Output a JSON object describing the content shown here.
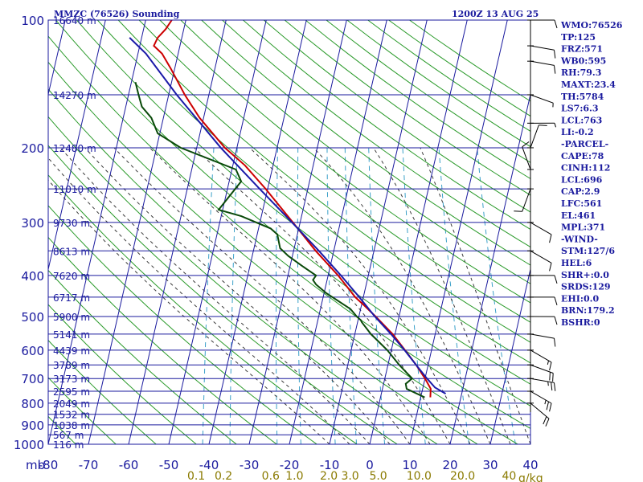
{
  "header": {
    "title": "MMZC (76526) Sounding",
    "datetime": "1200Z 13 AUG 25"
  },
  "colors": {
    "frame": "#1a1a9e",
    "isotherm": "#1a1a9e",
    "dry_adiabat": "#2a9a2a",
    "moist_adiabat": "#3a3a3a",
    "mixing_ratio": "#3aa0c8",
    "temperature": "#cc0000",
    "dewpoint": "#0a4a0a",
    "parcel": "#1a1aa8",
    "mixing_ratio_label": "#8a7a00"
  },
  "pressure_axis": {
    "unit_label": "mb",
    "levels": [
      100,
      200,
      300,
      400,
      500,
      600,
      700,
      800,
      900,
      1000
    ]
  },
  "temperature_axis": {
    "ticks": [
      -80,
      -70,
      -60,
      -50,
      -40,
      -30,
      -20,
      -10,
      0,
      10,
      20,
      30,
      40
    ]
  },
  "mixing_ratio_labels": [
    {
      "value": 0.1,
      "text": "0.1"
    },
    {
      "value": 0.2,
      "text": "0.2"
    },
    {
      "value": 0.6,
      "text": "0.6"
    },
    {
      "value": 1.0,
      "text": "1.0"
    },
    {
      "value": 2.0,
      "text": "2.0"
    },
    {
      "value": 3.0,
      "text": "3.0"
    },
    {
      "value": 5.0,
      "text": "5.0"
    },
    {
      "value": 10.0,
      "text": "10.0"
    },
    {
      "value": 20.0,
      "text": "20.0"
    },
    {
      "value": 40.0,
      "text": "40"
    }
  ],
  "mixing_ratio_unit": "g/kg",
  "heights": [
    {
      "p": 100,
      "text": "16640 m"
    },
    {
      "p": 150,
      "text": "14270 m"
    },
    {
      "p": 200,
      "text": "12480 m"
    },
    {
      "p": 250,
      "text": "11010 m"
    },
    {
      "p": 300,
      "text": "9730 m"
    },
    {
      "p": 350,
      "text": "8613 m"
    },
    {
      "p": 400,
      "text": "7620 m"
    },
    {
      "p": 450,
      "text": "6717 m"
    },
    {
      "p": 500,
      "text": "5900 m"
    },
    {
      "p": 550,
      "text": "5141 m"
    },
    {
      "p": 600,
      "text": "4439 m"
    },
    {
      "p": 650,
      "text": "3789 m"
    },
    {
      "p": 700,
      "text": "3173 m"
    },
    {
      "p": 750,
      "text": "2595 m"
    },
    {
      "p": 800,
      "text": "2049 m"
    },
    {
      "p": 850,
      "text": "1532 m"
    },
    {
      "p": 900,
      "text": "1038 m"
    },
    {
      "p": 950,
      "text": "567 m"
    },
    {
      "p": 1000,
      "text": "116 m"
    }
  ],
  "indices": [
    "WMO:76526",
    "TP:125",
    "FRZ:571",
    "WB0:595",
    "RH:79.3",
    "MAXT:23.4",
    "TH:5784",
    "LS7:6.3",
    "LCL:763",
    "LI:-0.2",
    "-PARCEL-",
    "CAPE:78",
    "CINH:112",
    "LCL:696",
    "CAP:2.9",
    "LFC:561",
    "EL:461",
    "MPL:371",
    "-WIND-",
    "STM:127/6",
    "HEL:6",
    "SHR+:0.0",
    "SRDS:129",
    "EHI:0.0",
    "BRN:179.2",
    "BSHR:0"
  ],
  "chart_data": {
    "type": "line",
    "title": "MMZC (76526) Sounding",
    "subtitle": "1200Z 13 AUG 25",
    "xlabel": "",
    "ylabel": "mb",
    "x_units": "°C",
    "xlim": [
      -80,
      40
    ],
    "ylim": [
      1000,
      100
    ],
    "y_scale": "log",
    "skew": "skew-T",
    "grid": true,
    "series": [
      {
        "key": "temperature",
        "points": [
          [
            775,
            12.4
          ],
          [
            740,
            12.0
          ],
          [
            700,
            10.0
          ],
          [
            650,
            7.0
          ],
          [
            600,
            3.4
          ],
          [
            550,
            -0.6
          ],
          [
            500,
            -5.8
          ],
          [
            470,
            -9.4
          ],
          [
            450,
            -12.0
          ],
          [
            400,
            -17.5
          ],
          [
            350,
            -24.5
          ],
          [
            300,
            -31.8
          ],
          [
            250,
            -40.5
          ],
          [
            220,
            -47.0
          ],
          [
            200,
            -53.0
          ],
          [
            170,
            -61.0
          ],
          [
            150,
            -66.0
          ],
          [
            130,
            -71.0
          ],
          [
            120,
            -74.0
          ],
          [
            115,
            -76.5
          ],
          [
            110,
            -76.0
          ],
          [
            105,
            -74.5
          ],
          [
            100,
            -73.5
          ]
        ]
      },
      {
        "key": "dewpoint",
        "points": [
          [
            775,
            11.0
          ],
          [
            740,
            6.0
          ],
          [
            720,
            5.5
          ],
          [
            700,
            6.8
          ],
          [
            650,
            2.8
          ],
          [
            600,
            -1.0
          ],
          [
            550,
            -6.0
          ],
          [
            515,
            -9.0
          ],
          [
            510,
            -9.3
          ],
          [
            500,
            -10.5
          ],
          [
            480,
            -12.5
          ],
          [
            440,
            -19.5
          ],
          [
            420,
            -22.5
          ],
          [
            410,
            -23.5
          ],
          [
            400,
            -23.0
          ],
          [
            380,
            -27.0
          ],
          [
            360,
            -31.0
          ],
          [
            345,
            -33.5
          ],
          [
            320,
            -35.0
          ],
          [
            310,
            -37.0
          ],
          [
            290,
            -45.0
          ],
          [
            280,
            -51.0
          ],
          [
            240,
            -47.0
          ],
          [
            225,
            -49.0
          ],
          [
            200,
            -64.0
          ],
          [
            185,
            -70.5
          ],
          [
            170,
            -73.0
          ],
          [
            160,
            -76.0
          ],
          [
            150,
            -77.5
          ],
          [
            140,
            -79.0
          ]
        ]
      },
      {
        "key": "parcel",
        "points": [
          [
            760,
            16.0
          ],
          [
            735,
            13.0
          ],
          [
            700,
            10.5
          ],
          [
            650,
            7.0
          ],
          [
            600,
            3.3
          ],
          [
            550,
            -1.0
          ],
          [
            500,
            -6.0
          ],
          [
            450,
            -11.0
          ],
          [
            400,
            -16.8
          ],
          [
            350,
            -23.7
          ],
          [
            300,
            -32.0
          ],
          [
            250,
            -42.0
          ],
          [
            200,
            -54.0
          ],
          [
            150,
            -68.0
          ],
          [
            120,
            -78.0
          ],
          [
            110,
            -83.0
          ]
        ]
      }
    ],
    "wind_barbs": [
      {
        "p": 100,
        "dir": 90,
        "spd": 10
      },
      {
        "p": 115,
        "dir": 100,
        "spd": 10
      },
      {
        "p": 125,
        "dir": 100,
        "spd": 10
      },
      {
        "p": 150,
        "dir": 110,
        "spd": 5
      },
      {
        "p": 175,
        "dir": 90,
        "spd": 5
      },
      {
        "p": 200,
        "dir": 20,
        "spd": 10
      },
      {
        "p": 225,
        "dir": 340,
        "spd": 10
      },
      {
        "p": 250,
        "dir": 200,
        "spd": 10
      },
      {
        "p": 300,
        "dir": 120,
        "spd": 10
      },
      {
        "p": 350,
        "dir": 120,
        "spd": 10
      },
      {
        "p": 400,
        "dir": 90,
        "spd": 10
      },
      {
        "p": 450,
        "dir": 90,
        "spd": 10
      },
      {
        "p": 500,
        "dir": 90,
        "spd": 10
      },
      {
        "p": 550,
        "dir": 100,
        "spd": 10
      },
      {
        "p": 600,
        "dir": 120,
        "spd": 15
      },
      {
        "p": 650,
        "dir": 110,
        "spd": 20
      },
      {
        "p": 700,
        "dir": 100,
        "spd": 25
      },
      {
        "p": 750,
        "dir": 120,
        "spd": 25
      },
      {
        "p": 800,
        "dir": 130,
        "spd": 20
      }
    ]
  }
}
